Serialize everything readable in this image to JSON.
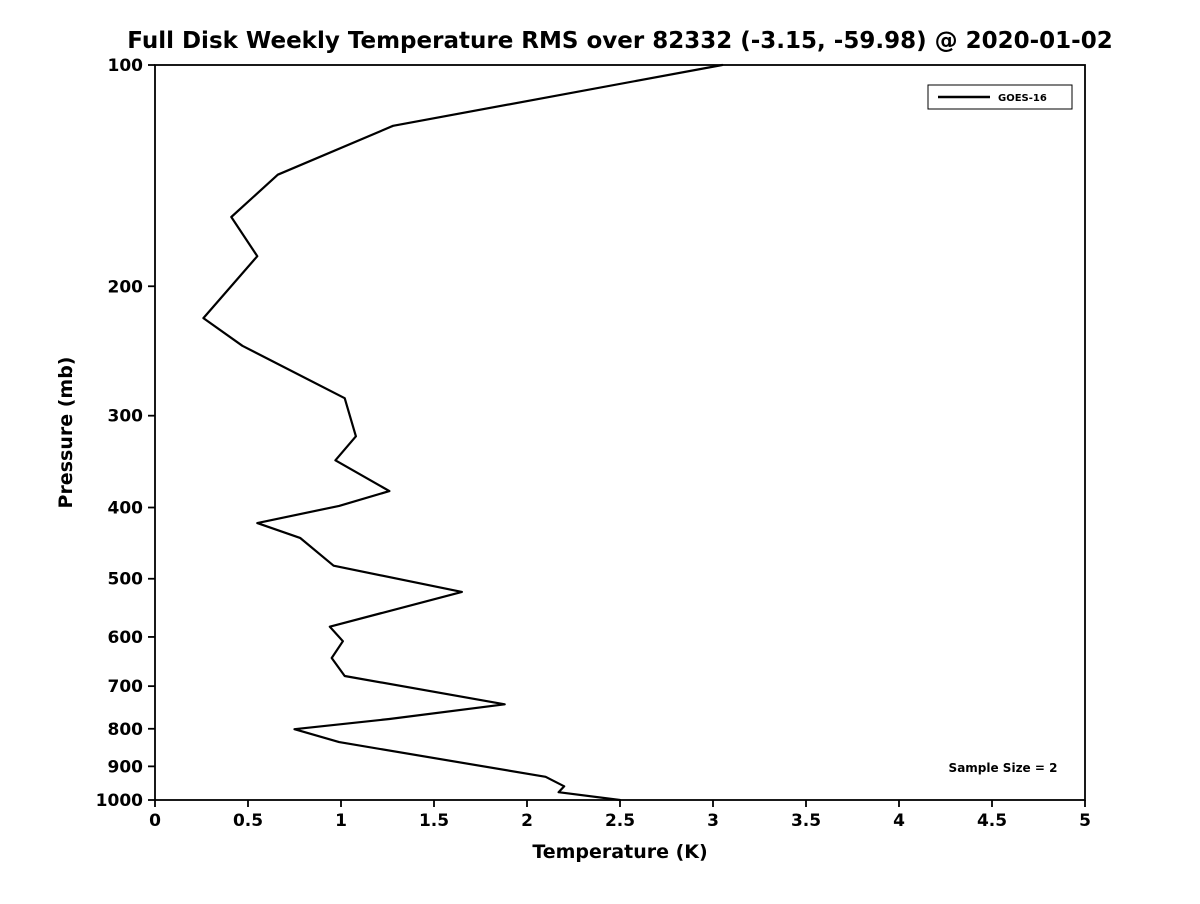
{
  "chart_data": {
    "type": "line",
    "title": "Full Disk Weekly Temperature RMS over 82332 (-3.15, -59.98) @ 2020-01-02",
    "xlabel": "Temperature (K)",
    "ylabel": "Pressure (mb)",
    "xlim": [
      0,
      5
    ],
    "ylim": [
      100,
      1000
    ],
    "yscale": "log",
    "y_inverted": true,
    "grid": false,
    "xticks": [
      0,
      0.5,
      1,
      1.5,
      2,
      2.5,
      3,
      3.5,
      4,
      4.5,
      5
    ],
    "xtick_labels": [
      "0",
      "0.5",
      "1",
      "1.5",
      "2",
      "2.5",
      "3",
      "3.5",
      "4",
      "4.5",
      "5"
    ],
    "yticks": [
      100,
      200,
      300,
      400,
      500,
      600,
      700,
      800,
      900,
      1000
    ],
    "ytick_labels": [
      "100",
      "200",
      "300",
      "400",
      "500",
      "600",
      "700",
      "800",
      "900",
      "1000"
    ],
    "legend_position": "top-right",
    "annotation": "Sample Size = 2",
    "line_color": "#000000",
    "series": [
      {
        "name": "GOES-16",
        "points": [
          {
            "t": 3.05,
            "p": 100
          },
          {
            "t": 1.28,
            "p": 121
          },
          {
            "t": 0.66,
            "p": 141
          },
          {
            "t": 0.41,
            "p": 161
          },
          {
            "t": 0.55,
            "p": 182
          },
          {
            "t": 0.26,
            "p": 221
          },
          {
            "t": 0.47,
            "p": 241
          },
          {
            "t": 1.02,
            "p": 284
          },
          {
            "t": 1.08,
            "p": 320
          },
          {
            "t": 0.97,
            "p": 345
          },
          {
            "t": 1.26,
            "p": 380
          },
          {
            "t": 0.99,
            "p": 398
          },
          {
            "t": 0.55,
            "p": 420
          },
          {
            "t": 0.78,
            "p": 440
          },
          {
            "t": 0.96,
            "p": 480
          },
          {
            "t": 1.65,
            "p": 521
          },
          {
            "t": 0.94,
            "p": 581
          },
          {
            "t": 1.01,
            "p": 608
          },
          {
            "t": 0.95,
            "p": 641
          },
          {
            "t": 1.02,
            "p": 678
          },
          {
            "t": 1.88,
            "p": 741
          },
          {
            "t": 1.26,
            "p": 776
          },
          {
            "t": 0.75,
            "p": 801
          },
          {
            "t": 0.99,
            "p": 834
          },
          {
            "t": 2.1,
            "p": 930
          },
          {
            "t": 2.2,
            "p": 958
          },
          {
            "t": 2.17,
            "p": 976
          },
          {
            "t": 2.5,
            "p": 1000
          }
        ]
      }
    ]
  }
}
